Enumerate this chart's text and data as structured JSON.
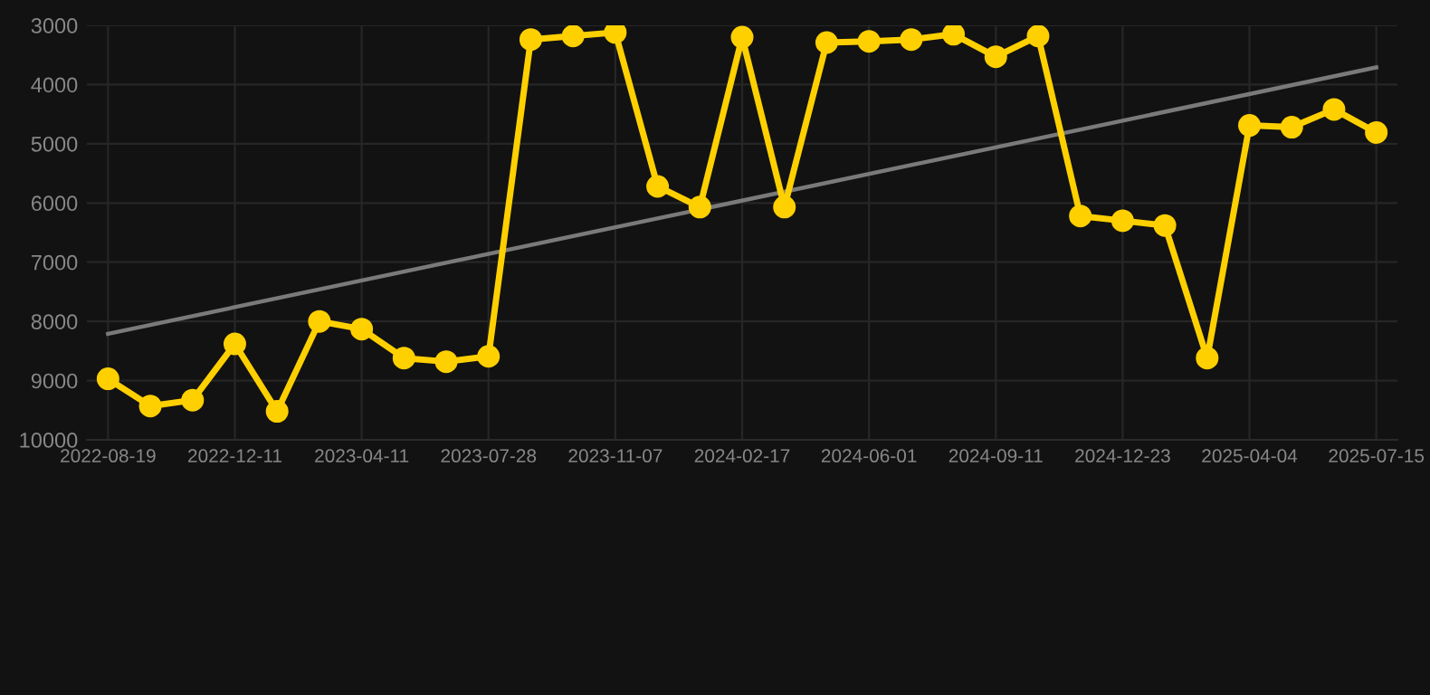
{
  "chart_data": {
    "type": "line",
    "categories": [
      "2022-08-19",
      null,
      null,
      "2022-12-11",
      null,
      null,
      "2023-04-11",
      null,
      null,
      "2023-07-28",
      null,
      null,
      "2023-11-07",
      null,
      null,
      "2024-02-17",
      null,
      null,
      "2024-06-01",
      null,
      null,
      "2024-09-11",
      null,
      null,
      "2024-12-23",
      null,
      null,
      "2025-04-04",
      null,
      null,
      "2025-07-15"
    ],
    "series": [
      {
        "color": "#ffd000",
        "marker": "circle",
        "values": [
          8970,
          9430,
          9330,
          8380,
          9520,
          8000,
          8130,
          8620,
          8680,
          8590,
          3240,
          3180,
          3120,
          5720,
          6070,
          3200,
          6070,
          3290,
          3270,
          3240,
          3150,
          3530,
          3180,
          6220,
          6300,
          6380,
          8620,
          4690,
          4720,
          4420,
          4810
        ]
      },
      {
        "type": "line",
        "color": "#7a7a7a",
        "marker": "none",
        "values": [
          8210,
          null,
          null,
          null,
          null,
          null,
          null,
          null,
          null,
          null,
          null,
          null,
          null,
          null,
          null,
          null,
          null,
          null,
          null,
          null,
          null,
          null,
          null,
          null,
          null,
          null,
          null,
          null,
          null,
          null,
          3710
        ]
      }
    ],
    "ylim": [
      10000,
      3000
    ],
    "yticks": [
      3000,
      4000,
      5000,
      6000,
      7000,
      8000,
      9000,
      10000
    ],
    "grid": true,
    "line_style": "solid"
  }
}
